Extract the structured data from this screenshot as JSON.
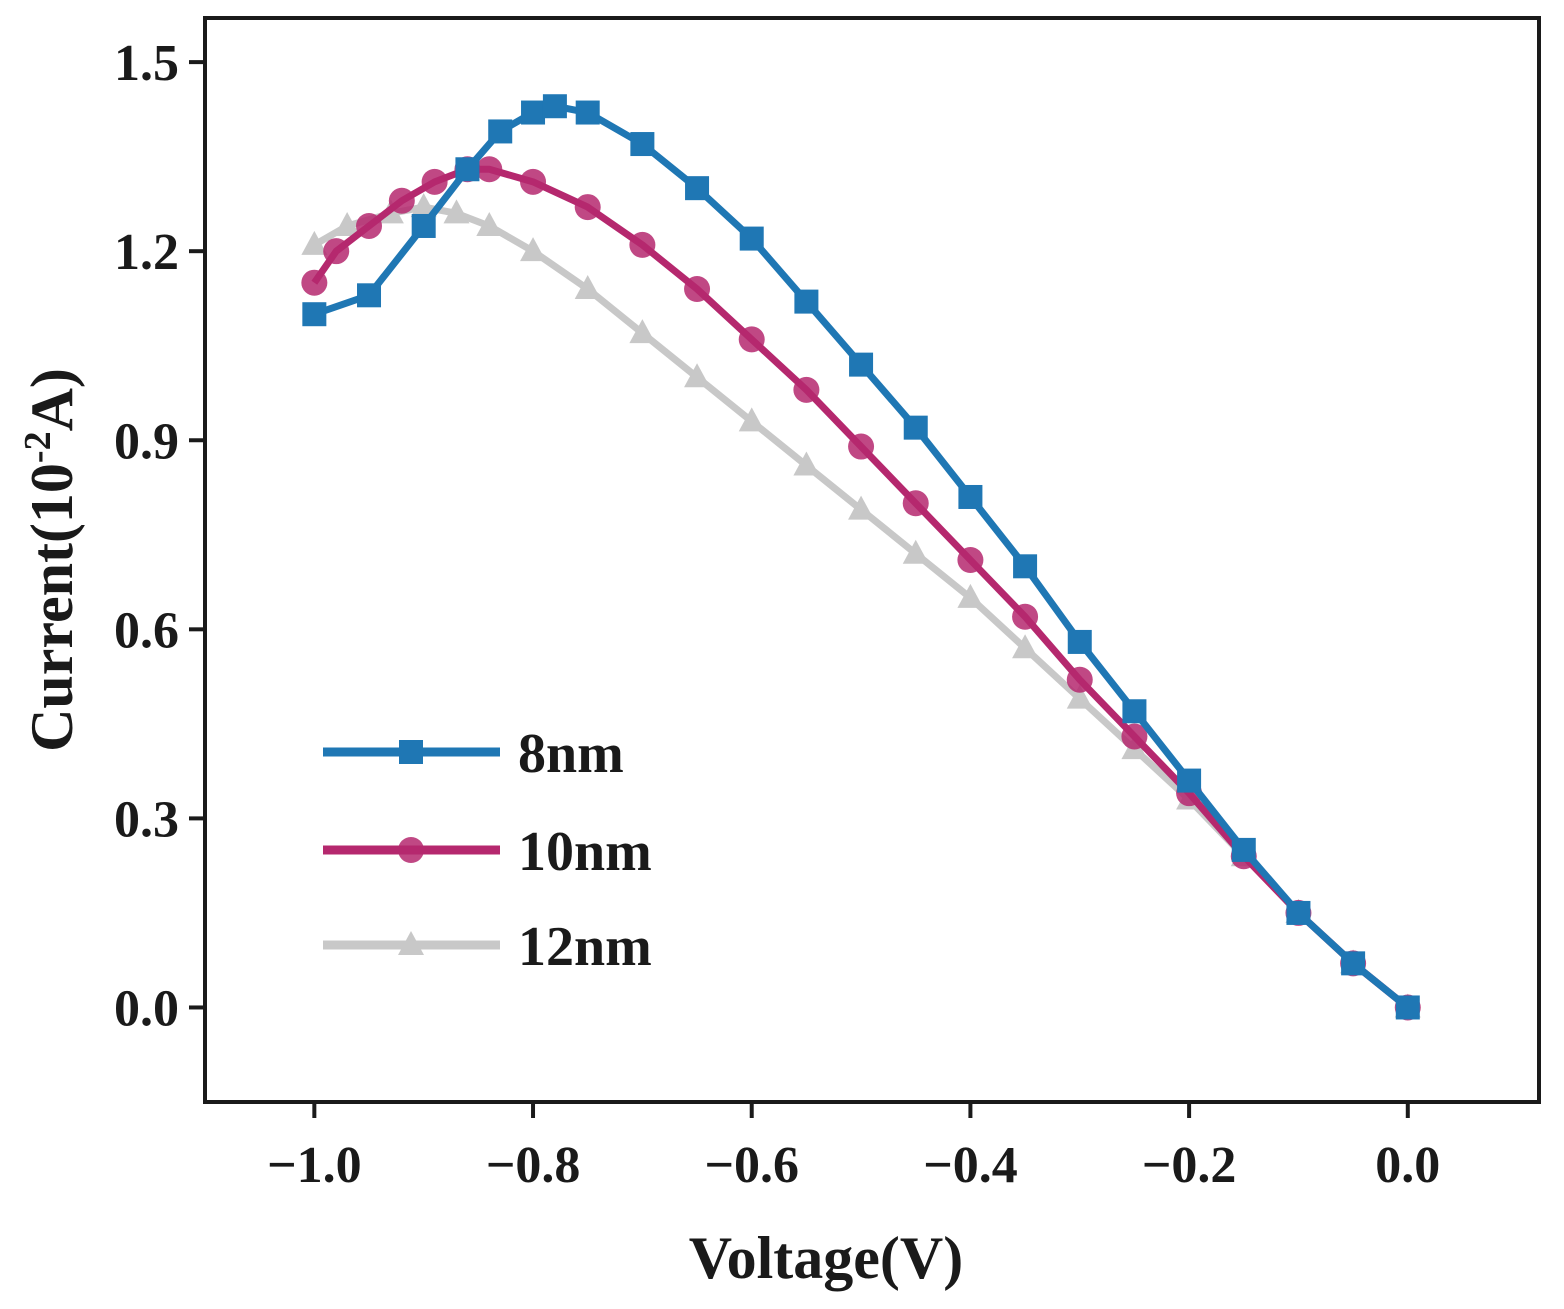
{
  "chart_data": {
    "type": "line",
    "xlabel": "Voltage(V)",
    "ylabel_main": "Current(10",
    "ylabel_sup": "-2",
    "ylabel_end": "A)",
    "xlim": [
      -1.1,
      0.12
    ],
    "ylim": [
      -0.15,
      1.57
    ],
    "xticks": [
      -1.0,
      -0.8,
      -0.6,
      -0.4,
      -0.2,
      0.0
    ],
    "xtick_labels": [
      "−1.0",
      "−0.8",
      "−0.6",
      "−0.4",
      "−0.2",
      "0.0"
    ],
    "yticks": [
      0.0,
      0.3,
      0.6,
      0.9,
      1.2,
      1.5
    ],
    "ytick_labels": [
      "0.0",
      "0.3",
      "0.6",
      "0.9",
      "1.2",
      "1.5"
    ],
    "legend_position": "bottom-left",
    "series": [
      {
        "name": "8nm",
        "color": "#1f77b4",
        "marker": "square",
        "x": [
          -1.0,
          -0.95,
          -0.9,
          -0.86,
          -0.83,
          -0.8,
          -0.78,
          -0.75,
          -0.7,
          -0.65,
          -0.6,
          -0.55,
          -0.5,
          -0.45,
          -0.4,
          -0.35,
          -0.3,
          -0.25,
          -0.2,
          -0.15,
          -0.1,
          -0.05,
          0.0
        ],
        "y": [
          1.1,
          1.13,
          1.24,
          1.33,
          1.39,
          1.42,
          1.43,
          1.42,
          1.37,
          1.3,
          1.22,
          1.12,
          1.02,
          0.92,
          0.81,
          0.7,
          0.58,
          0.47,
          0.36,
          0.25,
          0.15,
          0.07,
          0.0
        ]
      },
      {
        "name": "10nm",
        "color": "#b5286e",
        "marker": "circle",
        "x": [
          -1.0,
          -0.98,
          -0.95,
          -0.92,
          -0.89,
          -0.86,
          -0.84,
          -0.8,
          -0.75,
          -0.7,
          -0.65,
          -0.6,
          -0.55,
          -0.5,
          -0.45,
          -0.4,
          -0.35,
          -0.3,
          -0.25,
          -0.2,
          -0.15,
          -0.1,
          -0.05,
          0.0
        ],
        "y": [
          1.15,
          1.2,
          1.24,
          1.28,
          1.31,
          1.33,
          1.33,
          1.31,
          1.27,
          1.21,
          1.14,
          1.06,
          0.98,
          0.89,
          0.8,
          0.71,
          0.62,
          0.52,
          0.43,
          0.34,
          0.24,
          0.15,
          0.07,
          0.0
        ]
      },
      {
        "name": "12nm",
        "color": "#c8c8c8",
        "marker": "triangle",
        "x": [
          -1.0,
          -0.97,
          -0.93,
          -0.9,
          -0.87,
          -0.84,
          -0.8,
          -0.75,
          -0.7,
          -0.65,
          -0.6,
          -0.55,
          -0.5,
          -0.45,
          -0.4,
          -0.35,
          -0.3,
          -0.25,
          -0.2,
          -0.15,
          -0.1,
          -0.05,
          0.0
        ],
        "y": [
          1.21,
          1.24,
          1.26,
          1.27,
          1.26,
          1.24,
          1.2,
          1.14,
          1.07,
          1.0,
          0.93,
          0.86,
          0.79,
          0.72,
          0.65,
          0.57,
          0.49,
          0.41,
          0.33,
          0.24,
          0.15,
          0.07,
          0.0
        ]
      }
    ]
  }
}
